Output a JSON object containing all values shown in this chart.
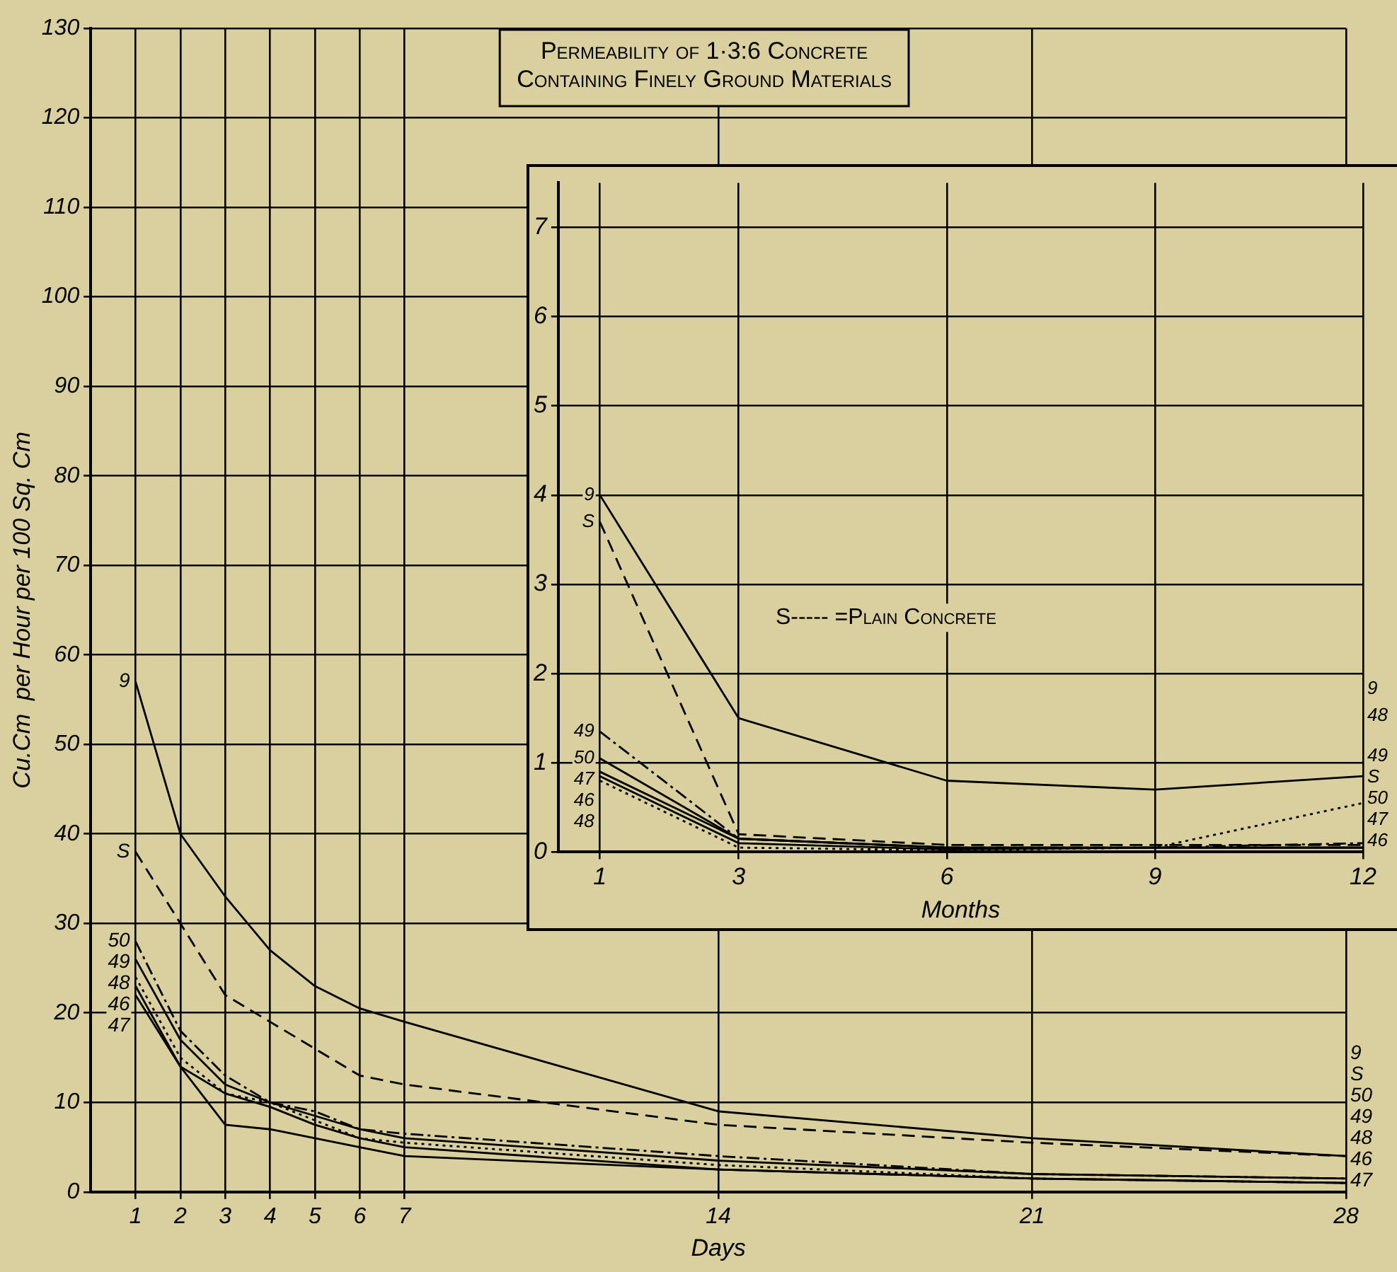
{
  "chart_data": [
    {
      "type": "line",
      "title": "Permeability of 1·3:6 Concrete\nContaining Finely Ground Materials",
      "xlabel": "Days",
      "ylabel": "Cu.Cm  per Hour per 100 Sq. Cm",
      "x": [
        1,
        2,
        3,
        4,
        5,
        6,
        7,
        14,
        21,
        28
      ],
      "xlim": [
        0,
        28
      ],
      "xticks": [
        1,
        2,
        3,
        4,
        5,
        6,
        7,
        14,
        21,
        28
      ],
      "ylim": [
        0,
        130
      ],
      "yticks": [
        0,
        10,
        20,
        30,
        40,
        50,
        60,
        70,
        80,
        90,
        100,
        110,
        120,
        130
      ],
      "grid": true,
      "legend": false,
      "marker": "none",
      "series": [
        {
          "name": "9",
          "color": "#000000",
          "line_style": "solid",
          "values": [
            57,
            40,
            33,
            27,
            23,
            20.5,
            19,
            9,
            6,
            4
          ]
        },
        {
          "name": "S",
          "color": "#000000",
          "line_style": "dashed",
          "values": [
            38,
            30,
            22,
            19,
            16,
            13,
            12,
            7.5,
            5.5,
            4
          ]
        },
        {
          "name": "50",
          "color": "#000000",
          "line_style": "dashdot",
          "values": [
            28,
            18,
            13,
            10,
            9,
            7,
            6.5,
            4,
            2,
            1.5
          ]
        },
        {
          "name": "49",
          "color": "#000000",
          "line_style": "solid",
          "values": [
            26,
            17,
            12,
            10,
            8.5,
            7,
            6,
            3.5,
            2,
            1.5
          ]
        },
        {
          "name": "48",
          "color": "#000000",
          "line_style": "dotted",
          "values": [
            24,
            15,
            11,
            10,
            8,
            6,
            5.5,
            3,
            1.5,
            1
          ]
        },
        {
          "name": "46",
          "color": "#000000",
          "line_style": "solid",
          "values": [
            23,
            14,
            11,
            9.5,
            7.5,
            6,
            5,
            2.5,
            1.5,
            1
          ]
        },
        {
          "name": "47",
          "color": "#000000",
          "line_style": "solid",
          "values": [
            22,
            14,
            7.5,
            7,
            6,
            5,
            4,
            2.5,
            1.5,
            1
          ]
        }
      ]
    },
    {
      "type": "line",
      "xlabel": "Months",
      "x": [
        1,
        3,
        6,
        9,
        12
      ],
      "xlim": [
        0.4,
        12
      ],
      "xticks": [
        1,
        3,
        6,
        9,
        12
      ],
      "ylim": [
        0,
        7.5
      ],
      "yticks": [
        0,
        1,
        2,
        3,
        4,
        5,
        6,
        7
      ],
      "grid": true,
      "legend": false,
      "marker": "none",
      "annotations": [
        "S----- =Plain Concrete"
      ],
      "series": [
        {
          "name": "9",
          "color": "#000000",
          "line_style": "solid",
          "values": [
            4,
            1.5,
            0.8,
            0.7,
            0.85
          ]
        },
        {
          "name": "S",
          "color": "#000000",
          "line_style": "dashed",
          "values": [
            3.7,
            0.2,
            0.08,
            0.08,
            0.08
          ]
        },
        {
          "name": "49",
          "color": "#000000",
          "line_style": "dashdot",
          "values": [
            1.35,
            0.15,
            0.05,
            0.05,
            0.1
          ]
        },
        {
          "name": "50",
          "color": "#000000",
          "line_style": "solid",
          "values": [
            1.05,
            0.15,
            0.05,
            0.05,
            0.05
          ]
        },
        {
          "name": "47",
          "color": "#000000",
          "line_style": "solid",
          "values": [
            0.9,
            0.15,
            0.05,
            0.05,
            0.05
          ]
        },
        {
          "name": "46",
          "color": "#000000",
          "line_style": "solid",
          "values": [
            0.85,
            0.1,
            0.03,
            0.05,
            0.05
          ]
        },
        {
          "name": "48",
          "color": "#000000",
          "line_style": "dotted",
          "values": [
            0.8,
            0.05,
            0.02,
            0.05,
            0.55
          ]
        }
      ]
    }
  ]
}
